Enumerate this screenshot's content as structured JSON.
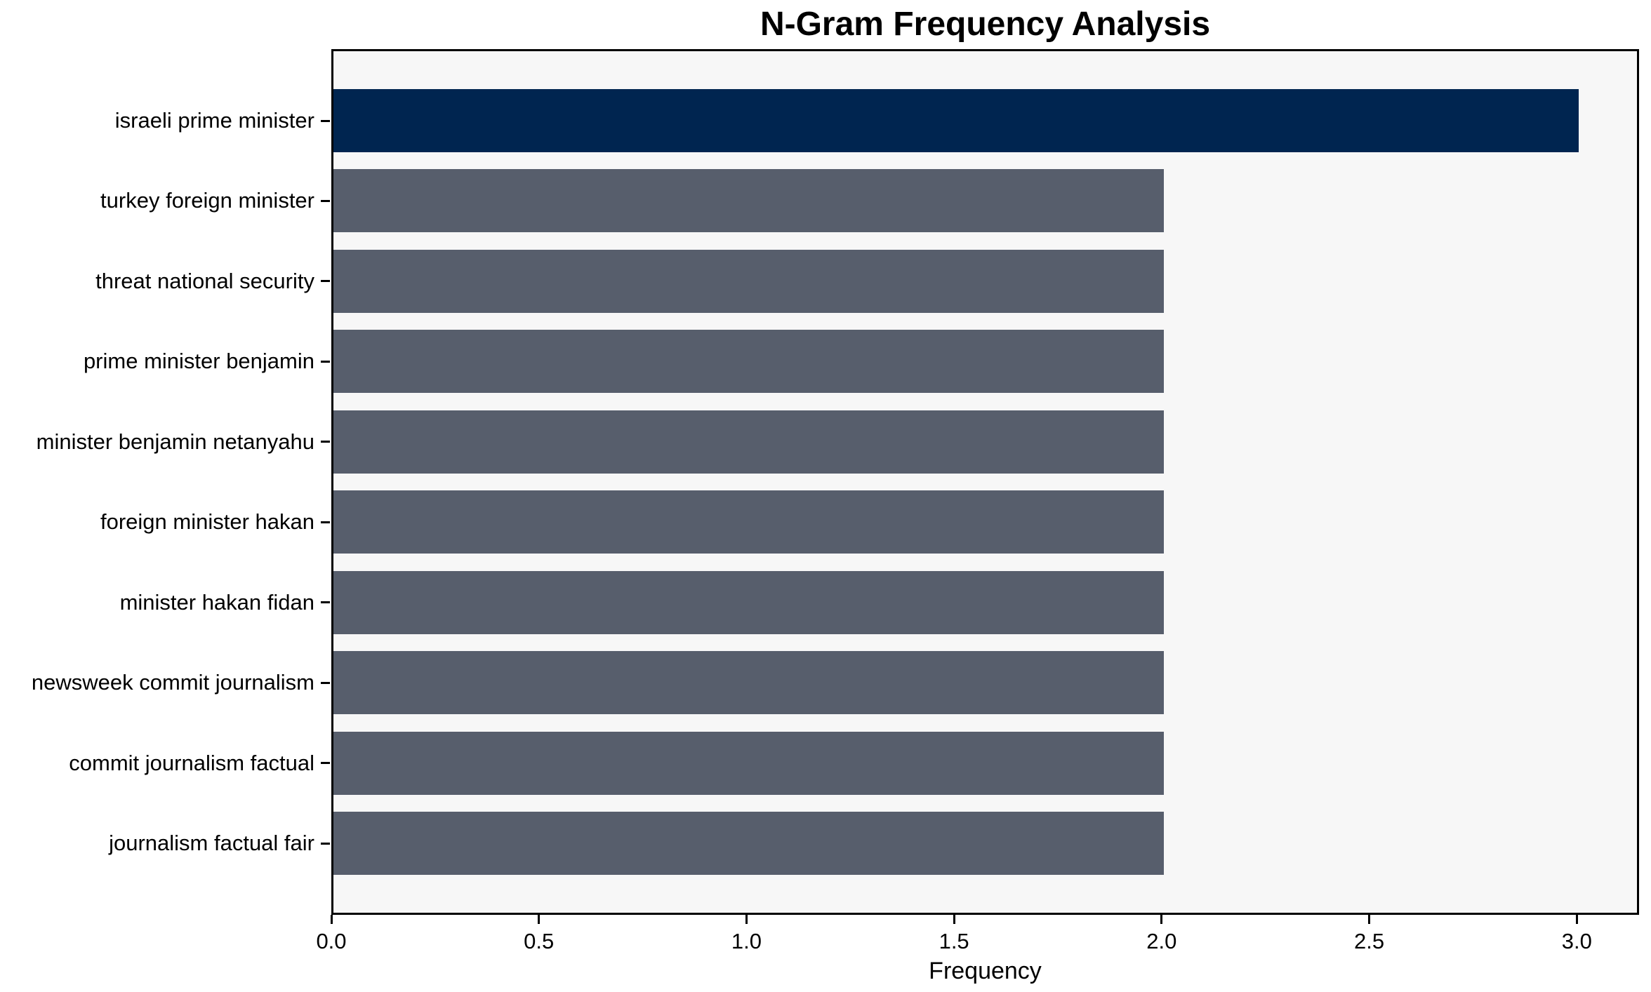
{
  "chart_data": {
    "type": "bar",
    "orientation": "horizontal",
    "title": "N-Gram Frequency Analysis",
    "xlabel": "Frequency",
    "ylabel": "",
    "categories": [
      "israeli prime minister",
      "turkey foreign minister",
      "threat national security",
      "prime minister benjamin",
      "minister benjamin netanyahu",
      "foreign minister hakan",
      "minister hakan fidan",
      "newsweek commit journalism",
      "commit journalism factual",
      "journalism factual fair"
    ],
    "values": [
      3,
      2,
      2,
      2,
      2,
      2,
      2,
      2,
      2,
      2
    ],
    "bar_colors": [
      "#002550",
      "#575e6c",
      "#575e6c",
      "#575e6c",
      "#575e6c",
      "#575e6c",
      "#575e6c",
      "#575e6c",
      "#575e6c",
      "#575e6c"
    ],
    "highlight_color": "#002550",
    "default_color": "#575e6c",
    "plot_background": "#f7f7f7",
    "spine_color": "#000000",
    "xlim": [
      0,
      3.15
    ],
    "xticks": [
      0.0,
      0.5,
      1.0,
      1.5,
      2.0,
      2.5,
      3.0
    ],
    "xtick_labels": [
      "0.0",
      "0.5",
      "1.0",
      "1.5",
      "2.0",
      "2.5",
      "3.0"
    ],
    "grid": false,
    "legend": null
  }
}
